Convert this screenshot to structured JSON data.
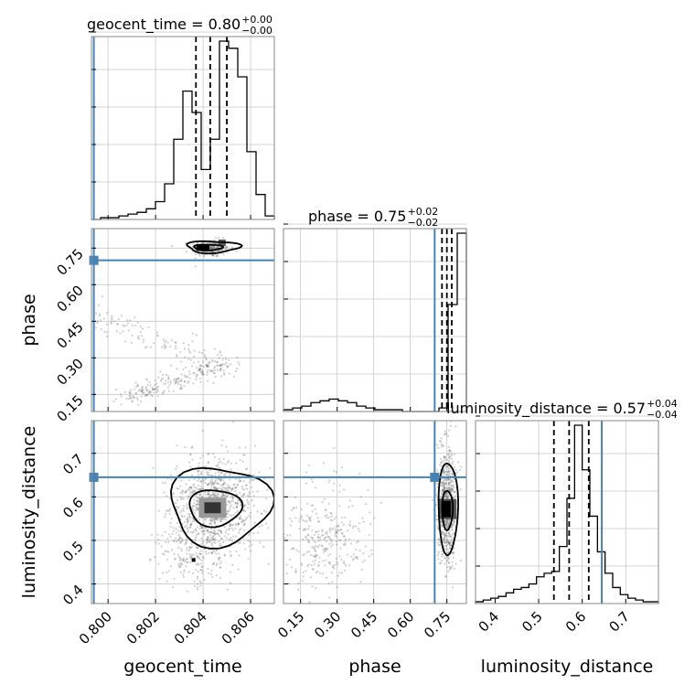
{
  "chart_data": {
    "type": "corner",
    "parameters": [
      "geocent_time",
      "phase",
      "luminosity_distance"
    ],
    "truths": {
      "geocent_time": 0.7994,
      "phase": 0.7,
      "luminosity_distance": 0.645
    },
    "titles": [
      {
        "param": "geocent_time",
        "text": "geocent_time = 0.80",
        "sup": "+0.00",
        "sub": "−0.00"
      },
      {
        "param": "phase",
        "text": "phase = 0.75",
        "sup": "+0.02",
        "sub": "−0.02"
      },
      {
        "param": "luminosity_distance",
        "text": "luminosity_distance = 0.57",
        "sup": "+0.04",
        "sub": "−0.04"
      }
    ],
    "ranges": {
      "geocent_time": [
        0.7993,
        0.807
      ],
      "phase": [
        0.08,
        0.83
      ],
      "luminosity_distance": [
        0.355,
        0.775
      ]
    },
    "ticks": {
      "geocent_time": [
        {
          "value": 0.8,
          "label": "0.800"
        },
        {
          "value": 0.802,
          "label": "0.802"
        },
        {
          "value": 0.804,
          "label": "0.804"
        },
        {
          "value": 0.806,
          "label": "0.806"
        }
      ],
      "phase": [
        {
          "value": 0.15,
          "label": "0.15"
        },
        {
          "value": 0.3,
          "label": "0.30"
        },
        {
          "value": 0.45,
          "label": "0.45"
        },
        {
          "value": 0.6,
          "label": "0.60"
        },
        {
          "value": 0.75,
          "label": "0.75"
        }
      ],
      "luminosity_distance": [
        {
          "value": 0.4,
          "label": "0.4"
        },
        {
          "value": 0.5,
          "label": "0.5"
        },
        {
          "value": 0.6,
          "label": "0.6"
        },
        {
          "value": 0.7,
          "label": "0.7"
        }
      ]
    },
    "quantiles": {
      "geocent_time": [
        0.8037,
        0.8043,
        0.805
      ],
      "phase": [
        0.73,
        0.75,
        0.77
      ],
      "luminosity_distance": [
        0.535,
        0.57,
        0.615
      ]
    },
    "histograms": {
      "geocent_time": {
        "edges_start": 0.7993,
        "bin_width": 0.000385,
        "counts": [
          0,
          1,
          1,
          2,
          3,
          4,
          6,
          10,
          20,
          45,
          72,
          60,
          28,
          45,
          100,
          96,
          80,
          38,
          14,
          2
        ]
      },
      "phase": {
        "edges_start": 0.08,
        "bin_width": 0.0375,
        "counts": [
          1,
          2,
          3,
          5,
          6,
          7,
          6,
          5,
          3,
          2,
          1,
          1,
          1,
          0,
          0,
          0,
          0,
          2,
          60,
          100
        ]
      },
      "luminosity_distance": {
        "edges_start": 0.355,
        "bin_width": 0.0175,
        "counts": [
          1,
          2,
          3,
          4,
          6,
          8,
          9,
          11,
          15,
          17,
          18,
          32,
          59,
          100,
          75,
          49,
          29,
          17,
          9,
          5,
          3,
          2,
          1,
          1
        ]
      }
    },
    "contour_levels": [
      "39%",
      "86%"
    ],
    "xlabel_bottom": [
      "geocent_time",
      "phase",
      "luminosity_distance"
    ],
    "ylabels_left": [
      "phase",
      "luminosity_distance"
    ],
    "grid": true,
    "colors": {
      "truth": "#4682b4",
      "contour": "#000000",
      "points": "#555555",
      "quantile": "#000000"
    }
  }
}
